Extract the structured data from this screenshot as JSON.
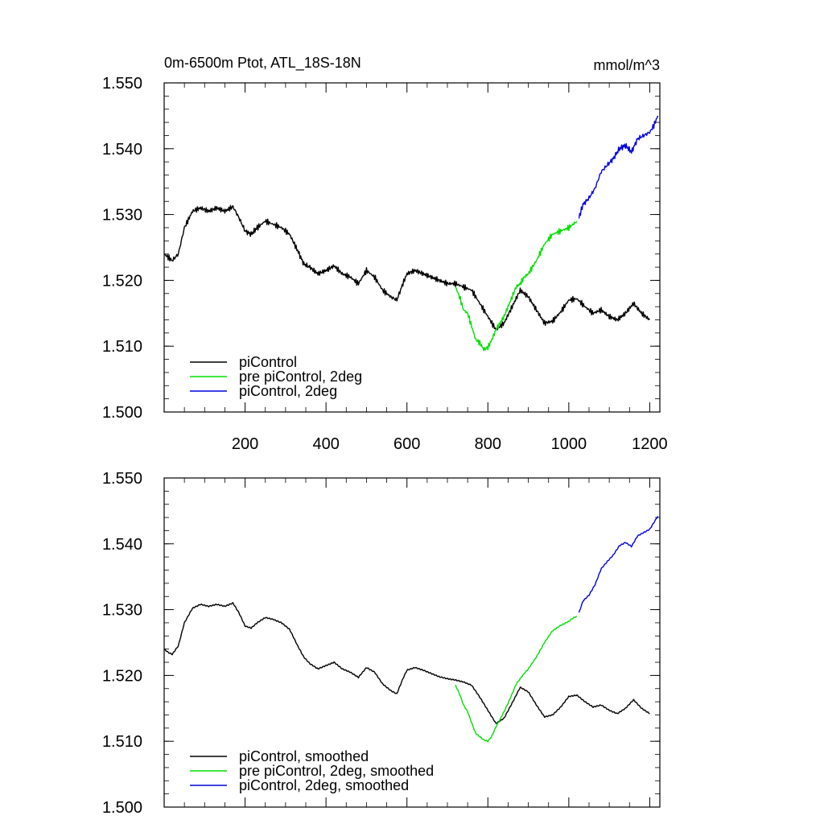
{
  "chart_data": [
    {
      "type": "line",
      "title": "0m-6500m Ptot, ATL_18S-18N",
      "units": "mmol/m^3",
      "xlim": [
        0,
        1225
      ],
      "ylim": [
        1.5,
        1.55
      ],
      "xticks": [
        200,
        400,
        600,
        800,
        1000,
        1200
      ],
      "xtick_labels": [
        "200",
        "400",
        "600",
        "800",
        "1000",
        "1200"
      ],
      "yticks": [
        1.5,
        1.51,
        1.52,
        1.53,
        1.54,
        1.55
      ],
      "ytick_labels": [
        "1.500",
        "1.510",
        "1.520",
        "1.530",
        "1.540",
        "1.550"
      ],
      "legend_position": "bottom-left",
      "series": [
        {
          "name": "piControl",
          "color": "#000000",
          "x": [
            0,
            10,
            20,
            35,
            50,
            70,
            90,
            110,
            130,
            150,
            170,
            185,
            200,
            215,
            230,
            250,
            270,
            290,
            310,
            330,
            345,
            360,
            380,
            400,
            420,
            440,
            460,
            480,
            500,
            520,
            540,
            560,
            575,
            590,
            600,
            620,
            640,
            660,
            680,
            700,
            720,
            740,
            760,
            780,
            800,
            820,
            840,
            860,
            880,
            900,
            920,
            940,
            960,
            980,
            1000,
            1020,
            1040,
            1060,
            1080,
            1100,
            1120,
            1140,
            1160,
            1180,
            1200
          ],
          "y": [
            1.524,
            1.5235,
            1.523,
            1.524,
            1.528,
            1.5305,
            1.531,
            1.5305,
            1.531,
            1.5305,
            1.5312,
            1.5295,
            1.5275,
            1.527,
            1.528,
            1.529,
            1.5285,
            1.528,
            1.527,
            1.5245,
            1.5225,
            1.522,
            1.521,
            1.5215,
            1.5222,
            1.521,
            1.5205,
            1.5195,
            1.5215,
            1.5205,
            1.5185,
            1.5175,
            1.517,
            1.5195,
            1.521,
            1.5215,
            1.521,
            1.5205,
            1.52,
            1.5195,
            1.5195,
            1.519,
            1.5185,
            1.5165,
            1.5145,
            1.5125,
            1.5135,
            1.516,
            1.5185,
            1.5175,
            1.5155,
            1.5135,
            1.5138,
            1.5152,
            1.517,
            1.5172,
            1.516,
            1.515,
            1.5155,
            1.5145,
            1.514,
            1.515,
            1.5165,
            1.515,
            1.514
          ]
        },
        {
          "name": "pre piControl, 2deg",
          "color": "#00e000",
          "x": [
            720,
            730,
            740,
            750,
            760,
            770,
            780,
            790,
            800,
            810,
            820,
            830,
            840,
            850,
            860,
            870,
            880,
            890,
            900,
            920,
            940,
            960,
            980,
            1000,
            1010,
            1020
          ],
          "y": [
            1.519,
            1.5175,
            1.5155,
            1.515,
            1.513,
            1.511,
            1.5105,
            1.5095,
            1.5098,
            1.511,
            1.5125,
            1.5135,
            1.5145,
            1.516,
            1.5175,
            1.519,
            1.5195,
            1.5205,
            1.521,
            1.523,
            1.5255,
            1.527,
            1.5275,
            1.528,
            1.5285,
            1.529
          ]
        },
        {
          "name": "piControl, 2deg",
          "color": "#0000e0",
          "x": [
            1025,
            1035,
            1050,
            1065,
            1080,
            1095,
            1110,
            1125,
            1140,
            1155,
            1170,
            1185,
            1200,
            1210,
            1220
          ],
          "y": [
            1.5295,
            1.5315,
            1.5325,
            1.534,
            1.5365,
            1.5375,
            1.5385,
            1.54,
            1.5405,
            1.5395,
            1.5415,
            1.542,
            1.5425,
            1.5435,
            1.545
          ]
        }
      ]
    },
    {
      "type": "line",
      "xlim": [
        0,
        1225
      ],
      "ylim": [
        1.5,
        1.55
      ],
      "xticks": [
        200,
        400,
        600,
        800,
        1000,
        1200
      ],
      "yticks": [
        1.5,
        1.51,
        1.52,
        1.53,
        1.54,
        1.55
      ],
      "ytick_labels": [
        "1.500",
        "1.510",
        "1.520",
        "1.530",
        "1.540",
        "1.550"
      ],
      "legend_position": "bottom-left",
      "series": [
        {
          "name": "piControl, smoothed",
          "color": "#000000",
          "x": [
            0,
            10,
            20,
            35,
            50,
            70,
            90,
            110,
            130,
            150,
            170,
            185,
            200,
            215,
            230,
            250,
            270,
            290,
            310,
            330,
            345,
            360,
            380,
            400,
            420,
            440,
            460,
            480,
            500,
            520,
            540,
            560,
            575,
            590,
            600,
            620,
            640,
            660,
            680,
            700,
            720,
            740,
            760,
            780,
            800,
            820,
            840,
            860,
            880,
            900,
            920,
            940,
            960,
            980,
            1000,
            1020,
            1040,
            1060,
            1080,
            1100,
            1120,
            1140,
            1160,
            1180,
            1200
          ],
          "y": [
            1.524,
            1.5235,
            1.5232,
            1.5245,
            1.528,
            1.5302,
            1.5308,
            1.5305,
            1.5308,
            1.5305,
            1.531,
            1.5295,
            1.5275,
            1.5272,
            1.528,
            1.5288,
            1.5285,
            1.528,
            1.527,
            1.5245,
            1.5228,
            1.5218,
            1.521,
            1.5215,
            1.522,
            1.521,
            1.5205,
            1.5197,
            1.5212,
            1.5205,
            1.5187,
            1.5177,
            1.5172,
            1.5195,
            1.5208,
            1.5212,
            1.5208,
            1.5203,
            1.5198,
            1.5195,
            1.5193,
            1.519,
            1.5185,
            1.5167,
            1.5147,
            1.5127,
            1.5135,
            1.5158,
            1.5182,
            1.5175,
            1.5155,
            1.5137,
            1.514,
            1.5152,
            1.5168,
            1.517,
            1.516,
            1.5152,
            1.5155,
            1.5147,
            1.5142,
            1.515,
            1.5163,
            1.515,
            1.5142
          ]
        },
        {
          "name": "pre piControl, 2deg, smoothed",
          "color": "#00e000",
          "x": [
            720,
            730,
            740,
            750,
            760,
            770,
            780,
            790,
            800,
            810,
            820,
            830,
            840,
            850,
            860,
            870,
            880,
            890,
            900,
            920,
            940,
            960,
            980,
            1000,
            1010,
            1020
          ],
          "y": [
            1.5185,
            1.5172,
            1.5155,
            1.5145,
            1.5128,
            1.5112,
            1.5107,
            1.5102,
            1.51,
            1.5108,
            1.5122,
            1.5133,
            1.5145,
            1.5158,
            1.5172,
            1.5187,
            1.5195,
            1.5203,
            1.521,
            1.5228,
            1.525,
            1.5268,
            1.5276,
            1.5282,
            1.5287,
            1.529
          ]
        },
        {
          "name": "piControl, 2deg, smoothed",
          "color": "#0000e0",
          "x": [
            1025,
            1035,
            1050,
            1065,
            1080,
            1095,
            1110,
            1125,
            1140,
            1155,
            1170,
            1185,
            1200,
            1210,
            1220
          ],
          "y": [
            1.5295,
            1.5313,
            1.5322,
            1.5338,
            1.5362,
            1.5373,
            1.5383,
            1.5397,
            1.5402,
            1.5396,
            1.5412,
            1.5417,
            1.5422,
            1.5432,
            1.5442
          ]
        }
      ]
    }
  ]
}
